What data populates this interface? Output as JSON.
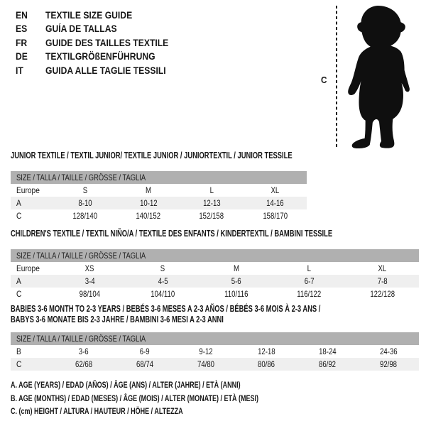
{
  "colors": {
    "header_bar": "#b0b0b0",
    "shaded_row": "#efefef",
    "ink": "#161616"
  },
  "languages": [
    {
      "code": "EN",
      "label": "TEXTILE SIZE GUIDE"
    },
    {
      "code": "ES",
      "label": "GUÍA DE TALLAS"
    },
    {
      "code": "FR",
      "label": "GUIDE DES TAILLES TEXTILE"
    },
    {
      "code": "DE",
      "label": "TEXTILGRÖßENFÜHRUNG"
    },
    {
      "code": "IT",
      "label": "GUIDA ALLE TAGLIE TESSILI"
    }
  ],
  "figure": {
    "label": "C"
  },
  "tables": [
    {
      "name": "junior",
      "title_lines": [
        "JUNIOR TEXTILE / TEXTIL JUNIOR/ TEXTILE JUNIOR / JUNIORTEXTIL / JUNIOR TESSILE"
      ],
      "size_header": "SIZE / TALLA / TAILLE / GRÖSSE / TAGLIA",
      "rows": [
        {
          "label": "Europe",
          "values": [
            "S",
            "M",
            "L",
            "XL"
          ]
        },
        {
          "label": "A",
          "values": [
            "8-10",
            "10-12",
            "12-13",
            "14-16"
          ]
        },
        {
          "label": "C",
          "values": [
            "128/140",
            "140/152",
            "152/158",
            "158/170"
          ]
        }
      ]
    },
    {
      "name": "children",
      "title_lines": [
        "CHILDREN'S TEXTILE / TEXTIL NIÑO/A / TEXTILE DES ENFANTS / KINDERTEXTIL / BAMBINI TESSILE"
      ],
      "size_header": "SIZE / TALLA / TAILLE / GRÖSSE / TAGLIA",
      "rows": [
        {
          "label": "Europe",
          "values": [
            "XS",
            "S",
            "M",
            "L",
            "XL"
          ]
        },
        {
          "label": "A",
          "values": [
            "3-4",
            "4-5",
            "5-6",
            "6-7",
            "7-8"
          ]
        },
        {
          "label": "C",
          "values": [
            "98/104",
            "104/110",
            "110/116",
            "116/122",
            "122/128"
          ]
        }
      ]
    },
    {
      "name": "babies",
      "title_lines": [
        "BABIES 3-6 MONTH TO 2-3 YEARS / BEBÉS 3-6 MESES A 2-3 AÑOS / BÉBÉS 3-6 MOIS À 2-3 ANS /",
        "BABYS 3-6 MONATE BIS 2-3 JAHRE / BAMBINI 3-6 MESI A 2-3 ANNI"
      ],
      "size_header": "SIZE / TALLA / TAILLE / GRÖSSE / TAGLIA",
      "rows": [
        {
          "label": "B",
          "values": [
            "3-6",
            "6-9",
            "9-12",
            "12-18",
            "18-24",
            "24-36"
          ]
        },
        {
          "label": "C",
          "values": [
            "62/68",
            "68/74",
            "74/80",
            "80/86",
            "86/92",
            "92/98"
          ]
        }
      ]
    }
  ],
  "legend": [
    "A. AGE (YEARS) / EDAD (AÑOS) / ÂGE (ANS) / ALTER (JAHRE) / ETÀ (ANNI)",
    "B. AGE (MONTHS) / EDAD (MESES) / ÂGE (MOIS) / ALTER (MONATE) / ETÀ (MESI)",
    "C. (cm) HEIGHT / ALTURA / HAUTEUR / HÖHE / ALTEZZA"
  ]
}
